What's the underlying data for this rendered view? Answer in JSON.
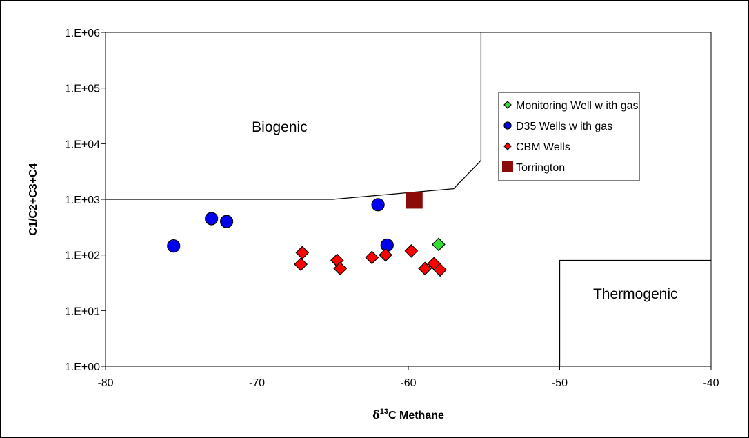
{
  "chart_data": {
    "type": "scatter",
    "xlabel": {
      "prefix": "δ",
      "superscript": "13",
      "rest": "C Methane"
    },
    "ylabel": "C1/C2+C3+C4",
    "xlim": [
      -80,
      -40
    ],
    "ylim": [
      1,
      1000000
    ],
    "y_scale": "log",
    "x_ticks": [
      -80,
      -70,
      -60,
      -50,
      -40
    ],
    "x_tick_labels": [
      "-80",
      "-70",
      "-60",
      "-50",
      "-40"
    ],
    "y_ticks": [
      1,
      10,
      100,
      1000,
      10000,
      100000,
      1000000
    ],
    "y_tick_labels": [
      "1.E+00",
      "1.E+01",
      "1.E+02",
      "1.E+03",
      "1.E+04",
      "1.E+05",
      "1.E+06"
    ],
    "grid": false,
    "legend_position": "top-right",
    "regions": [
      {
        "label": "Biogenic",
        "x": -68.5,
        "y": 20000
      },
      {
        "label": "Thermogenic",
        "x": -45,
        "y": 20
      }
    ],
    "boundary_lines": [
      {
        "name": "biogenic-boundary",
        "points": [
          [
            -80,
            1000
          ],
          [
            -65,
            1000
          ],
          [
            -57,
            1550
          ],
          [
            -55.2,
            5000
          ],
          [
            -55.2,
            1000000
          ]
        ]
      },
      {
        "name": "thermogenic-boundary",
        "points": [
          [
            -50,
            1
          ],
          [
            -50,
            80
          ],
          [
            -40,
            80
          ]
        ]
      }
    ],
    "series": [
      {
        "name": "Monitoring Well w ith gas",
        "marker": "diamond",
        "color": "#33dd33",
        "points": [
          {
            "x": -58,
            "y": 155
          }
        ]
      },
      {
        "name": "D35 Wells w ith gas",
        "marker": "circle",
        "color": "#0000ee",
        "points": [
          {
            "x": -75.5,
            "y": 145
          },
          {
            "x": -73,
            "y": 450
          },
          {
            "x": -72,
            "y": 400
          },
          {
            "x": -62,
            "y": 800
          },
          {
            "x": -61.4,
            "y": 150
          }
        ]
      },
      {
        "name": "CBM Wells",
        "marker": "diamond",
        "color": "#ff0000",
        "points": [
          {
            "x": -67,
            "y": 110
          },
          {
            "x": -67.1,
            "y": 68
          },
          {
            "x": -64.7,
            "y": 80
          },
          {
            "x": -64.5,
            "y": 57
          },
          {
            "x": -62.4,
            "y": 90
          },
          {
            "x": -61.5,
            "y": 100
          },
          {
            "x": -59.8,
            "y": 118
          },
          {
            "x": -58.9,
            "y": 57
          },
          {
            "x": -58.3,
            "y": 70
          },
          {
            "x": -57.9,
            "y": 54
          }
        ]
      },
      {
        "name": "Torrington",
        "marker": "square",
        "color": "#8b0a0a",
        "points": [
          {
            "x": -59.6,
            "y": 960
          }
        ]
      }
    ]
  }
}
